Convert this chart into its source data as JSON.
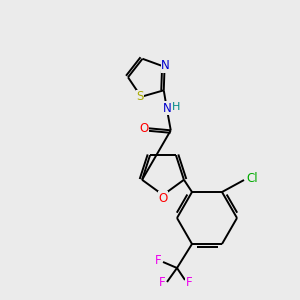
{
  "background_color": "#ebebeb",
  "bond_color": "#000000",
  "atom_colors": {
    "N": "#0000cc",
    "O": "#ff0000",
    "S": "#aaaa00",
    "Cl": "#00aa00",
    "F": "#ee00ee",
    "H": "#008888",
    "C": "#000000"
  },
  "figsize": [
    3.0,
    3.0
  ],
  "dpi": 100
}
